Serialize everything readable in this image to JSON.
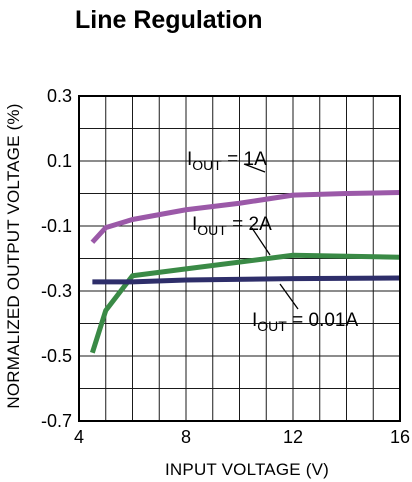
{
  "chart_data": {
    "type": "line",
    "title": "Line Regulation",
    "xlabel": "INPUT VOLTAGE (V)",
    "ylabel": "NORMALIZED OUTPUT VOLTAGE (%)",
    "xlim": [
      4,
      16
    ],
    "ylim": [
      -0.7,
      0.3
    ],
    "x_ticks": [
      "4",
      "8",
      "12",
      "16"
    ],
    "y_ticks": [
      "0.3",
      "0.1",
      "-0.1",
      "-0.3",
      "-0.5",
      "-0.7"
    ],
    "grid": true,
    "series": [
      {
        "name": "I_OUT = 1A",
        "color": "#9b59a8",
        "x": [
          4.5,
          5.0,
          6.0,
          8.0,
          10.0,
          12.0,
          14.0,
          16.0
        ],
        "y": [
          -0.15,
          -0.105,
          -0.08,
          -0.05,
          -0.03,
          -0.005,
          0.0,
          0.003
        ]
      },
      {
        "name": "I_OUT = 2A",
        "color": "#3a8a46",
        "x": [
          4.5,
          5.0,
          6.0,
          8.0,
          12.0,
          16.0
        ],
        "y": [
          -0.49,
          -0.36,
          -0.253,
          -0.232,
          -0.19,
          -0.196
        ]
      },
      {
        "name": "I_OUT = 0.01A",
        "color": "#2e2e6a",
        "x": [
          4.5,
          6.0,
          8.0,
          12.0,
          16.0
        ],
        "y": [
          -0.272,
          -0.272,
          -0.266,
          -0.262,
          -0.26
        ]
      }
    ],
    "annotations": [
      {
        "base": "I",
        "sub": "OUT",
        "rest": " = 1A"
      },
      {
        "base": "I",
        "sub": "OUT",
        "rest": " = 2A"
      },
      {
        "base": "I",
        "sub": "OUT",
        "rest": " = 0.01A"
      }
    ]
  }
}
